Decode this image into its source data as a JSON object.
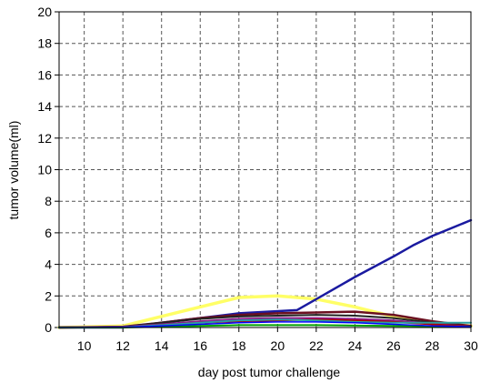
{
  "chart_data": {
    "type": "line",
    "title": "",
    "xlabel": "day post tumor challenge",
    "ylabel": "tumor volume(ml)",
    "xlim": [
      8.7,
      30
    ],
    "ylim": [
      0,
      20
    ],
    "xticks": [
      10,
      12,
      14,
      16,
      18,
      20,
      22,
      24,
      26,
      28,
      30
    ],
    "yticks": [
      0,
      2,
      4,
      6,
      8,
      10,
      12,
      14,
      16,
      18,
      20
    ],
    "grid": true,
    "legend": "none",
    "series": [
      {
        "color": "#ffff66",
        "width": 3.5,
        "x": [
          8.7,
          12,
          15,
          18,
          20,
          22,
          24,
          26,
          28,
          30
        ],
        "y": [
          0,
          0.1,
          1.0,
          1.9,
          2.0,
          1.8,
          1.3,
          0.7,
          0.3,
          0.1
        ]
      },
      {
        "color": "#1a1aa0",
        "width": 2.5,
        "x": [
          8.7,
          12,
          14,
          16,
          18,
          21,
          22,
          24,
          26,
          27,
          28,
          30
        ],
        "y": [
          0,
          0,
          0.3,
          0.6,
          0.9,
          1.1,
          1.8,
          3.2,
          4.5,
          5.2,
          5.8,
          6.8
        ]
      },
      {
        "color": "#6b1020",
        "width": 2.5,
        "x": [
          8.7,
          12,
          14,
          16,
          18,
          20,
          22,
          24,
          26,
          28,
          30
        ],
        "y": [
          0,
          0.05,
          0.3,
          0.6,
          0.8,
          0.9,
          0.95,
          1.0,
          0.8,
          0.4,
          0.1
        ]
      },
      {
        "color": "#222222",
        "width": 2,
        "x": [
          8.7,
          12,
          14,
          16,
          18,
          20,
          22,
          24,
          26,
          28,
          30
        ],
        "y": [
          0,
          0.05,
          0.3,
          0.55,
          0.7,
          0.75,
          0.8,
          0.75,
          0.6,
          0.3,
          0.05
        ]
      },
      {
        "color": "#8b1a8b",
        "width": 2,
        "x": [
          8.7,
          12,
          14,
          16,
          18,
          20,
          22,
          24,
          26,
          28,
          30
        ],
        "y": [
          0,
          0.05,
          0.2,
          0.4,
          0.55,
          0.6,
          0.6,
          0.55,
          0.45,
          0.25,
          0.05
        ]
      },
      {
        "color": "#b00000",
        "width": 2,
        "x": [
          8.7,
          12,
          14,
          16,
          18,
          20,
          22,
          24,
          26,
          28,
          30
        ],
        "y": [
          0,
          0.02,
          0.15,
          0.3,
          0.4,
          0.45,
          0.5,
          0.45,
          0.35,
          0.2,
          0.05
        ]
      },
      {
        "color": "#2aa0a0",
        "width": 2,
        "x": [
          8.7,
          12,
          14,
          16,
          18,
          20,
          22,
          24,
          26,
          28,
          30
        ],
        "y": [
          0,
          0.02,
          0.15,
          0.3,
          0.45,
          0.5,
          0.45,
          0.35,
          0.3,
          0.3,
          0.3
        ]
      },
      {
        "color": "#00a000",
        "width": 2,
        "x": [
          8.7,
          12,
          14,
          16,
          18,
          20,
          22,
          24,
          26,
          28,
          30
        ],
        "y": [
          0,
          0.0,
          0.05,
          0.1,
          0.15,
          0.15,
          0.15,
          0.12,
          0.1,
          0.08,
          0.05
        ]
      },
      {
        "color": "#0000ff",
        "width": 1.5,
        "x": [
          8.7,
          12,
          14,
          16,
          18,
          20,
          22,
          24,
          26,
          28,
          30
        ],
        "y": [
          0,
          0.02,
          0.1,
          0.2,
          0.3,
          0.35,
          0.35,
          0.3,
          0.2,
          0.1,
          0.05
        ]
      }
    ]
  }
}
